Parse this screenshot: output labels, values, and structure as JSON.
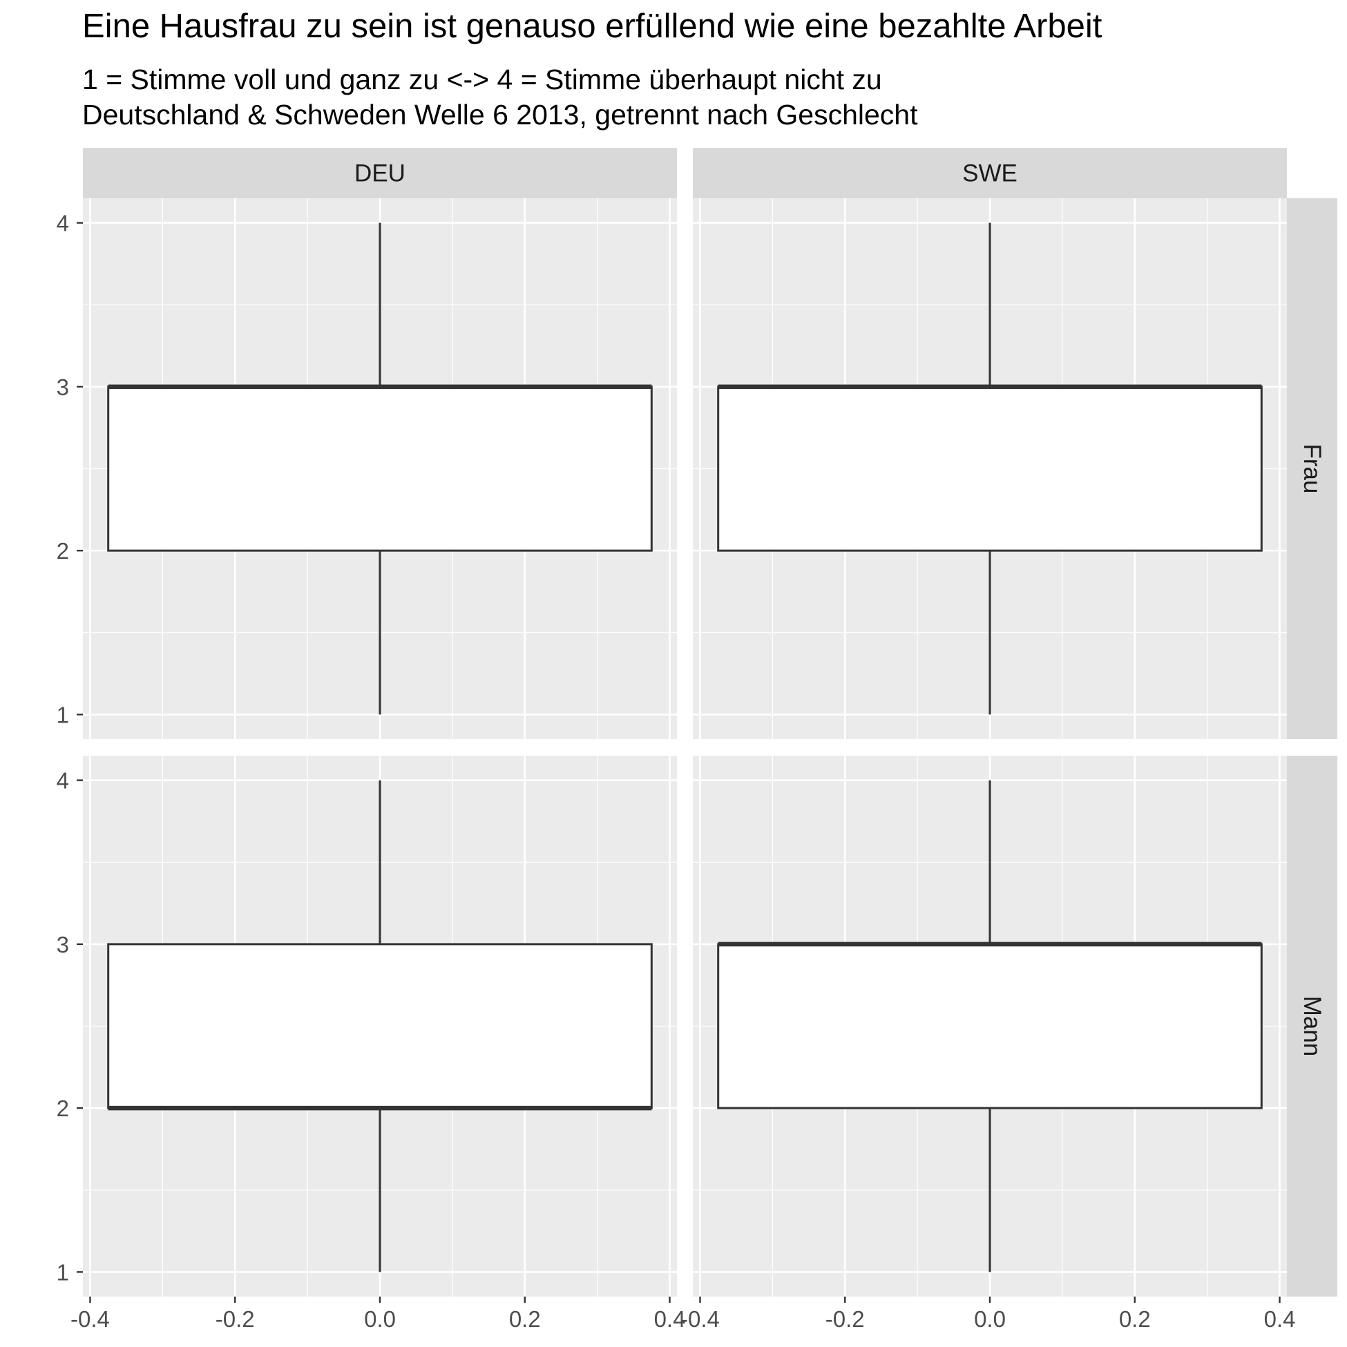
{
  "title": "Eine Hausfrau zu sein ist genauso erfüllend wie eine bezahlte Arbeit",
  "subtitle_lines": [
    "1 = Stimme voll und ganz zu <-> 4 = Stimme überhaupt nicht zu",
    "Deutschland & Schweden Welle 6 2013, getrennt nach Geschlecht"
  ],
  "chart_data": {
    "type": "boxplot",
    "facet_columns": [
      "DEU",
      "SWE"
    ],
    "facet_rows": [
      "Frau",
      "Mann"
    ],
    "x_ticks": [
      "-0.4",
      "-0.2",
      "0.0",
      "0.2",
      "0.4"
    ],
    "x_tick_values": [
      -0.4,
      -0.2,
      0.0,
      0.2,
      0.4
    ],
    "y_ticks": [
      "1",
      "2",
      "3",
      "4"
    ],
    "y_tick_values": [
      1,
      2,
      3,
      4
    ],
    "xlim": [
      -0.41,
      0.41
    ],
    "ylim": [
      0.85,
      4.15
    ],
    "grid": true,
    "colors": {
      "panel_bg": "#ebebeb",
      "grid": "#ffffff",
      "strip_bg": "#d9d9d9",
      "box_fill": "#ffffff",
      "box_line": "#333333",
      "tick_text": "#4d4d4d",
      "strip_text": "#1a1a1a"
    },
    "panels": [
      {
        "column": "DEU",
        "row": "Frau",
        "x_center": 0.0,
        "box_halfwidth": 0.375,
        "min": 1,
        "q1": 2,
        "median": 3,
        "q3": 3,
        "max": 4
      },
      {
        "column": "SWE",
        "row": "Frau",
        "x_center": 0.0,
        "box_halfwidth": 0.375,
        "min": 1,
        "q1": 2,
        "median": 3,
        "q3": 3,
        "max": 4
      },
      {
        "column": "DEU",
        "row": "Mann",
        "x_center": 0.0,
        "box_halfwidth": 0.375,
        "min": 1,
        "q1": 2,
        "median": 2,
        "q3": 3,
        "max": 4
      },
      {
        "column": "SWE",
        "row": "Mann",
        "x_center": 0.0,
        "box_halfwidth": 0.375,
        "min": 1,
        "q1": 2,
        "median": 3,
        "q3": 3,
        "max": 4
      }
    ]
  }
}
